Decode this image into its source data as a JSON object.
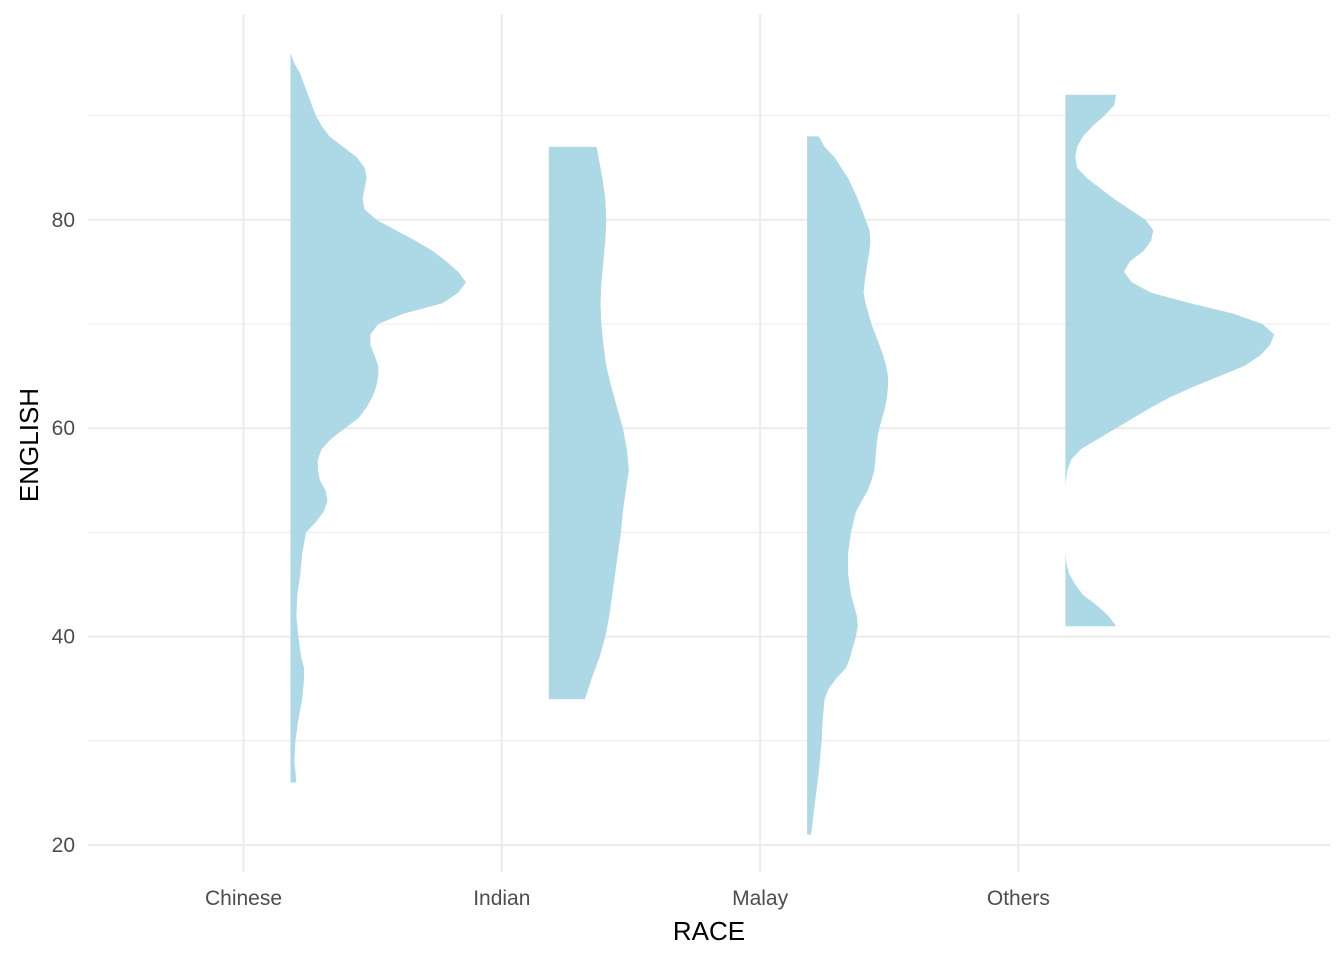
{
  "chart_data": {
    "type": "half-violin",
    "xlabel": "RACE",
    "ylabel": "ENGLISH",
    "categories": [
      "Chinese",
      "Indian",
      "Malay",
      "Others"
    ],
    "y_ticks": [
      20,
      40,
      60,
      80
    ],
    "ylim": [
      18,
      98
    ],
    "grid": true,
    "fill_color": "#ADD8E6",
    "grid_color": "#EBEBEB",
    "series": [
      {
        "category": "Chinese",
        "y_range": [
          26,
          96
        ],
        "density": [
          [
            26,
            0.03
          ],
          [
            28,
            0.02
          ],
          [
            30,
            0.025
          ],
          [
            32,
            0.04
          ],
          [
            34,
            0.06
          ],
          [
            36,
            0.07
          ],
          [
            37,
            0.07
          ],
          [
            38,
            0.055
          ],
          [
            40,
            0.04
          ],
          [
            42,
            0.03
          ],
          [
            44,
            0.035
          ],
          [
            46,
            0.05
          ],
          [
            48,
            0.06
          ],
          [
            50,
            0.08
          ],
          [
            51,
            0.13
          ],
          [
            52,
            0.17
          ],
          [
            53,
            0.19
          ],
          [
            54,
            0.18
          ],
          [
            55,
            0.15
          ],
          [
            56,
            0.14
          ],
          [
            57,
            0.14
          ],
          [
            58,
            0.16
          ],
          [
            59,
            0.21
          ],
          [
            60,
            0.28
          ],
          [
            61,
            0.35
          ],
          [
            62,
            0.39
          ],
          [
            63,
            0.42
          ],
          [
            64,
            0.44
          ],
          [
            65,
            0.45
          ],
          [
            66,
            0.45
          ],
          [
            67,
            0.43
          ],
          [
            68,
            0.41
          ],
          [
            69,
            0.41
          ],
          [
            70,
            0.45
          ],
          [
            71,
            0.58
          ],
          [
            72,
            0.78
          ],
          [
            73,
            0.86
          ],
          [
            74,
            0.9
          ],
          [
            75,
            0.86
          ],
          [
            76,
            0.8
          ],
          [
            77,
            0.73
          ],
          [
            78,
            0.64
          ],
          [
            79,
            0.54
          ],
          [
            80,
            0.44
          ],
          [
            81,
            0.38
          ],
          [
            82,
            0.37
          ],
          [
            83,
            0.38
          ],
          [
            84,
            0.39
          ],
          [
            85,
            0.38
          ],
          [
            86,
            0.34
          ],
          [
            87,
            0.27
          ],
          [
            88,
            0.2
          ],
          [
            89,
            0.16
          ],
          [
            90,
            0.13
          ],
          [
            91,
            0.11
          ],
          [
            92,
            0.09
          ],
          [
            93,
            0.07
          ],
          [
            94,
            0.05
          ],
          [
            95,
            0.02
          ],
          [
            96,
            0.0
          ]
        ]
      },
      {
        "category": "Indian",
        "y_range": [
          34,
          87
        ],
        "density": [
          [
            34,
            0.185
          ],
          [
            36,
            0.22
          ],
          [
            38,
            0.26
          ],
          [
            40,
            0.29
          ],
          [
            42,
            0.31
          ],
          [
            44,
            0.325
          ],
          [
            46,
            0.34
          ],
          [
            48,
            0.355
          ],
          [
            50,
            0.37
          ],
          [
            52,
            0.38
          ],
          [
            54,
            0.395
          ],
          [
            56,
            0.41
          ],
          [
            58,
            0.4
          ],
          [
            60,
            0.38
          ],
          [
            62,
            0.35
          ],
          [
            64,
            0.32
          ],
          [
            66,
            0.295
          ],
          [
            68,
            0.28
          ],
          [
            70,
            0.27
          ],
          [
            72,
            0.265
          ],
          [
            74,
            0.27
          ],
          [
            76,
            0.28
          ],
          [
            78,
            0.29
          ],
          [
            80,
            0.295
          ],
          [
            82,
            0.29
          ],
          [
            84,
            0.275
          ],
          [
            86,
            0.255
          ],
          [
            87,
            0.245
          ]
        ]
      },
      {
        "category": "Malay",
        "y_range": [
          21,
          88
        ],
        "density": [
          [
            21,
            0.02
          ],
          [
            24,
            0.04
          ],
          [
            27,
            0.06
          ],
          [
            30,
            0.075
          ],
          [
            32,
            0.08
          ],
          [
            34,
            0.09
          ],
          [
            35,
            0.11
          ],
          [
            36,
            0.15
          ],
          [
            37,
            0.2
          ],
          [
            38,
            0.22
          ],
          [
            39,
            0.235
          ],
          [
            40,
            0.25
          ],
          [
            41,
            0.26
          ],
          [
            42,
            0.255
          ],
          [
            43,
            0.24
          ],
          [
            44,
            0.225
          ],
          [
            46,
            0.21
          ],
          [
            48,
            0.21
          ],
          [
            50,
            0.225
          ],
          [
            52,
            0.25
          ],
          [
            53,
            0.28
          ],
          [
            54,
            0.31
          ],
          [
            55,
            0.33
          ],
          [
            56,
            0.345
          ],
          [
            57,
            0.35
          ],
          [
            58,
            0.355
          ],
          [
            59,
            0.36
          ],
          [
            60,
            0.37
          ],
          [
            61,
            0.385
          ],
          [
            62,
            0.4
          ],
          [
            63,
            0.41
          ],
          [
            64,
            0.415
          ],
          [
            65,
            0.415
          ],
          [
            66,
            0.405
          ],
          [
            67,
            0.39
          ],
          [
            68,
            0.37
          ],
          [
            70,
            0.33
          ],
          [
            72,
            0.3
          ],
          [
            73,
            0.29
          ],
          [
            74,
            0.295
          ],
          [
            76,
            0.31
          ],
          [
            77,
            0.32
          ],
          [
            78,
            0.325
          ],
          [
            79,
            0.32
          ],
          [
            80,
            0.3
          ],
          [
            82,
            0.26
          ],
          [
            84,
            0.21
          ],
          [
            86,
            0.14
          ],
          [
            87,
            0.09
          ],
          [
            88,
            0.06
          ]
        ]
      },
      {
        "category": "Others",
        "y_range": [
          41,
          92
        ],
        "segments": [
          [
            [
              41,
              0.26
            ],
            [
              42,
              0.22
            ],
            [
              43,
              0.16
            ],
            [
              44,
              0.09
            ],
            [
              45,
              0.05
            ],
            [
              46,
              0.02
            ],
            [
              47,
              0.005
            ],
            [
              48,
              0.0
            ],
            [
              49.5,
              0.0
            ]
          ],
          [
            [
              54.5,
              0.0
            ],
            [
              55,
              0.003
            ],
            [
              56,
              0.01
            ],
            [
              57,
              0.03
            ],
            [
              58,
              0.08
            ],
            [
              59,
              0.17
            ],
            [
              60,
              0.26
            ],
            [
              61,
              0.35
            ],
            [
              62,
              0.44
            ],
            [
              63,
              0.54
            ],
            [
              64,
              0.66
            ],
            [
              65,
              0.79
            ],
            [
              66,
              0.92
            ],
            [
              67,
              1.0
            ],
            [
              68,
              1.05
            ],
            [
              69,
              1.07
            ],
            [
              70,
              1.01
            ],
            [
              71,
              0.86
            ],
            [
              72,
              0.64
            ],
            [
              73,
              0.44
            ],
            [
              74,
              0.34
            ],
            [
              75,
              0.3
            ],
            [
              76,
              0.33
            ],
            [
              77,
              0.4
            ],
            [
              78,
              0.44
            ],
            [
              79,
              0.45
            ],
            [
              80,
              0.41
            ],
            [
              81,
              0.33
            ],
            [
              82,
              0.25
            ],
            [
              83,
              0.18
            ],
            [
              84,
              0.11
            ],
            [
              85,
              0.06
            ],
            [
              86,
              0.05
            ],
            [
              87,
              0.06
            ],
            [
              88,
              0.09
            ],
            [
              89,
              0.14
            ],
            [
              90,
              0.2
            ],
            [
              91,
              0.25
            ],
            [
              92,
              0.26
            ]
          ]
        ]
      }
    ]
  }
}
